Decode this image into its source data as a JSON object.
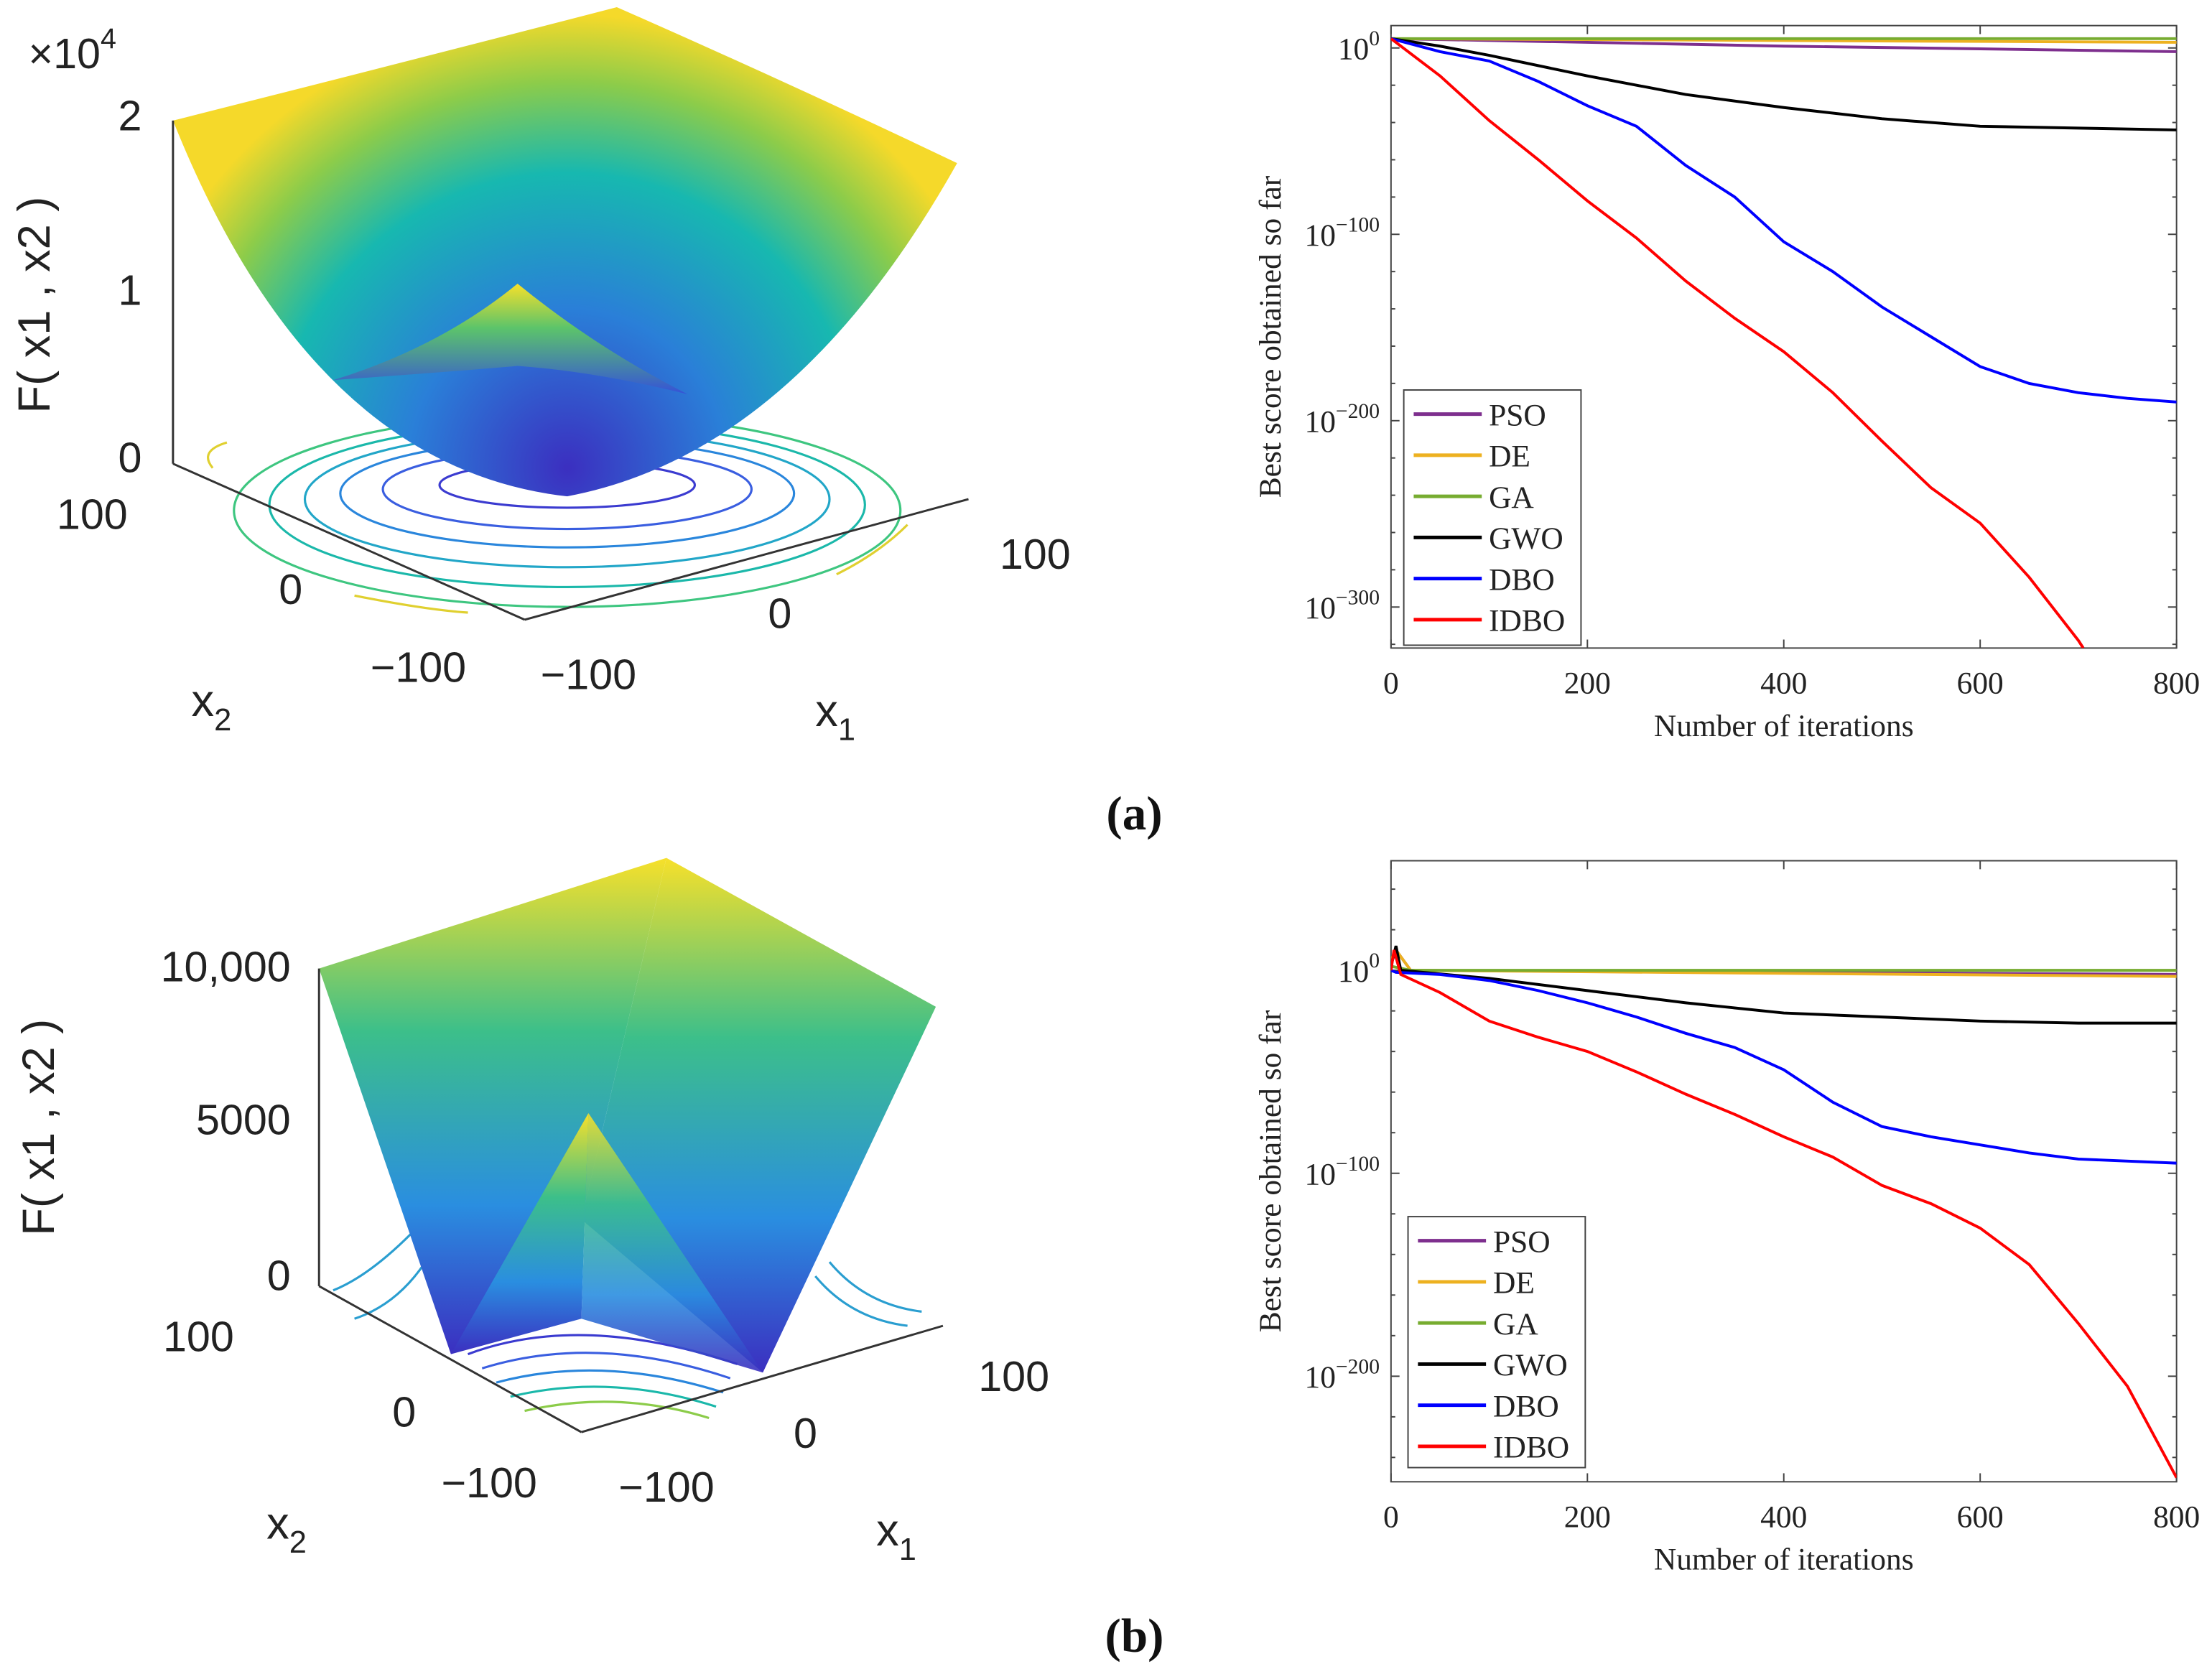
{
  "colors": {
    "PSO": "#7E2F8E",
    "DE": "#EDB120",
    "GA": "#77AC30",
    "GWO": "#000000",
    "DBO": "#0000FF",
    "IDBO": "#FF0000"
  },
  "panels": [
    {
      "caption": "(a)",
      "surface": {
        "z_label": "F( x1 , x2 )",
        "z_multiplier": {
          "base": "×10",
          "exp": "4"
        },
        "z_ticks": [
          "2",
          "1",
          "0"
        ],
        "x2_ticks": [
          "100",
          "0",
          "−100"
        ],
        "x1_ticks": [
          "−100",
          "0",
          "100"
        ],
        "x2_label": {
          "base": "x",
          "sub": "2"
        },
        "x1_label": {
          "base": "x",
          "sub": "1"
        }
      }
    },
    {
      "caption": "(b)",
      "surface": {
        "z_label": "F( x1 , x2 )",
        "z_ticks": [
          "10,000",
          "5000",
          "0"
        ],
        "x2_ticks": [
          "100",
          "0",
          "−100"
        ],
        "x1_ticks": [
          "−100",
          "0",
          "100"
        ],
        "x2_label": {
          "base": "x",
          "sub": "2"
        },
        "x1_label": {
          "base": "x",
          "sub": "1"
        }
      }
    }
  ],
  "chart_data": [
    {
      "type": "line",
      "yscale": "log",
      "xlabel": "Number of iterations",
      "ylabel": "Best score obtained so far",
      "xlim": [
        0,
        800
      ],
      "ylim_log10": [
        -322,
        12
      ],
      "xticks": [
        "0",
        "200",
        "400",
        "600",
        "800"
      ],
      "yticks": [
        {
          "base": "10",
          "exp": "0",
          "v": 0
        },
        {
          "base": "10",
          "exp": "−100",
          "v": -100
        },
        {
          "base": "10",
          "exp": "−200",
          "v": -200
        },
        {
          "base": "10",
          "exp": "−300",
          "v": -300
        }
      ],
      "legend": "bottom-left",
      "series": [
        {
          "name": "PSO",
          "x": [
            0,
            200,
            400,
            600,
            800
          ],
          "log10_y": [
            5,
            3,
            1,
            -0.5,
            -2
          ]
        },
        {
          "name": "DE",
          "x": [
            0,
            400,
            800
          ],
          "log10_y": [
            5,
            4,
            3
          ]
        },
        {
          "name": "GA",
          "x": [
            0,
            400,
            800
          ],
          "log10_y": [
            5,
            5,
            5
          ]
        },
        {
          "name": "GWO",
          "x": [
            0,
            50,
            100,
            200,
            300,
            400,
            500,
            600,
            700,
            800
          ],
          "log10_y": [
            5,
            1,
            -4,
            -15,
            -25,
            -32,
            -38,
            -42,
            -43,
            -44
          ]
        },
        {
          "name": "DBO",
          "x": [
            0,
            50,
            100,
            150,
            200,
            250,
            300,
            350,
            400,
            450,
            500,
            550,
            600,
            650,
            700,
            750,
            800
          ],
          "log10_y": [
            5,
            -2,
            -7,
            -18,
            -31,
            -42,
            -63,
            -80,
            -104,
            -120,
            -139,
            -155,
            -171,
            -180,
            -185,
            -188,
            -190
          ]
        },
        {
          "name": "IDBO",
          "x": [
            0,
            50,
            100,
            150,
            200,
            250,
            300,
            350,
            400,
            450,
            500,
            550,
            600,
            650,
            700,
            705
          ],
          "log10_y": [
            5,
            -15,
            -39,
            -60,
            -82,
            -102,
            -125,
            -145,
            -163,
            -185,
            -211,
            -236,
            -255,
            -284,
            -318,
            -322
          ]
        }
      ]
    },
    {
      "type": "line",
      "yscale": "log",
      "xlabel": "Number of iterations",
      "ylabel": "Best score obtained so far",
      "xlim": [
        0,
        800
      ],
      "ylim_log10": [
        -252,
        54
      ],
      "xticks": [
        "0",
        "200",
        "400",
        "600",
        "800"
      ],
      "yticks": [
        {
          "base": "10",
          "exp": "0",
          "v": 0
        },
        {
          "base": "10",
          "exp": "−100",
          "v": -100
        },
        {
          "base": "10",
          "exp": "−200",
          "v": -200
        }
      ],
      "legend": "bottom-left",
      "series": [
        {
          "name": "PSO",
          "x": [
            0,
            5,
            20,
            400,
            800
          ],
          "log10_y": [
            3,
            10,
            0,
            -1,
            -2
          ]
        },
        {
          "name": "DE",
          "x": [
            0,
            5,
            20,
            400,
            800
          ],
          "log10_y": [
            5,
            10,
            0,
            -1.5,
            -3
          ]
        },
        {
          "name": "GA",
          "x": [
            0,
            20,
            400,
            800
          ],
          "log10_y": [
            2,
            0,
            0,
            0
          ]
        },
        {
          "name": "GWO",
          "x": [
            0,
            5,
            10,
            100,
            200,
            300,
            400,
            500,
            600,
            700,
            800
          ],
          "log10_y": [
            2,
            12,
            0,
            -4,
            -10,
            -16,
            -21,
            -23,
            -25,
            -26,
            -26
          ]
        },
        {
          "name": "DBO",
          "x": [
            0,
            5,
            50,
            100,
            150,
            200,
            250,
            300,
            350,
            400,
            450,
            500,
            550,
            600,
            650,
            700,
            800
          ],
          "log10_y": [
            0,
            -1,
            -2,
            -5,
            -10,
            -16,
            -23,
            -31,
            -38,
            -49,
            -65,
            -77,
            -82,
            -86,
            -90,
            -93,
            -95
          ]
        },
        {
          "name": "IDBO",
          "x": [
            0,
            3,
            10,
            50,
            100,
            150,
            200,
            250,
            300,
            350,
            400,
            450,
            500,
            550,
            600,
            650,
            700,
            750,
            800
          ],
          "log10_y": [
            0,
            10,
            -2,
            -11,
            -25,
            -33,
            -40,
            -50,
            -61,
            -71,
            -82,
            -92,
            -106,
            -115,
            -127,
            -145,
            -174,
            -205,
            -250
          ]
        }
      ]
    }
  ]
}
